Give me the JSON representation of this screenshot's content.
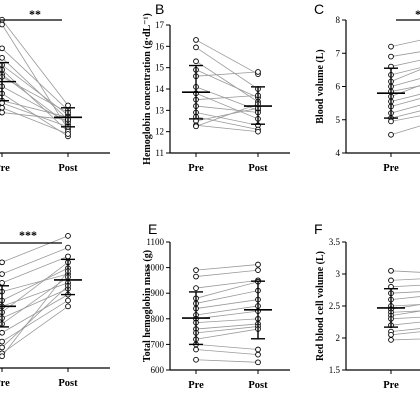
{
  "chart_data": [
    {
      "type": "scatter",
      "panel_label": "",
      "ylabel": "",
      "categories": [
        "Pre",
        "Post"
      ],
      "yticks": [],
      "ylim": [
        0.5,
        3.4
      ],
      "significance": "**",
      "pre_summary": {
        "mean": 2.0,
        "sd_low": 1.6,
        "sd_high": 2.4
      },
      "post_summary": {
        "mean": 1.25,
        "sd_low": 1.05,
        "sd_high": 1.45
      },
      "pairs": [
        [
          3.3,
          1.5
        ],
        [
          3.2,
          1.0
        ],
        [
          2.7,
          1.4
        ],
        [
          2.5,
          1.2
        ],
        [
          2.35,
          1.3
        ],
        [
          2.25,
          0.95
        ],
        [
          2.15,
          1.1
        ],
        [
          2.1,
          1.35
        ],
        [
          1.9,
          1.15
        ],
        [
          1.75,
          0.85
        ],
        [
          1.6,
          1.25
        ],
        [
          1.55,
          1.05
        ],
        [
          1.45,
          0.9
        ],
        [
          1.35,
          1.2
        ]
      ]
    },
    {
      "type": "scatter",
      "panel_label": "B",
      "ylabel": "Hemoglobin concentration (g·dL⁻¹)",
      "categories": [
        "Pre",
        "Post"
      ],
      "yticks": [
        11,
        12,
        13,
        14,
        15,
        16,
        17
      ],
      "ylim": [
        11,
        17
      ],
      "significance": "",
      "pre_summary": {
        "mean": 13.85,
        "sd_low": 12.6,
        "sd_high": 15.1
      },
      "post_summary": {
        "mean": 13.2,
        "sd_low": 12.35,
        "sd_high": 14.1
      },
      "pairs": [
        [
          16.3,
          14.7
        ],
        [
          15.95,
          14.0
        ],
        [
          15.3,
          13.4
        ],
        [
          14.9,
          13.6
        ],
        [
          14.6,
          14.8
        ],
        [
          14.1,
          13.0
        ],
        [
          13.8,
          12.6
        ],
        [
          13.5,
          13.7
        ],
        [
          13.2,
          12.9
        ],
        [
          12.9,
          12.3
        ],
        [
          12.7,
          12.1
        ],
        [
          12.5,
          13.1
        ],
        [
          12.3,
          12.0
        ],
        [
          12.25,
          13.3
        ]
      ]
    },
    {
      "type": "scatter",
      "panel_label": "C",
      "ylabel": "Blood volume (L)",
      "categories": [
        "Pre",
        "Post"
      ],
      "yticks": [
        4,
        5,
        6,
        7,
        8
      ],
      "ylim": [
        4,
        8
      ],
      "significance": "*",
      "pre_summary": {
        "mean": 5.8,
        "sd_low": 5.05,
        "sd_high": 6.55
      },
      "post_summary": {
        "mean": 6.3,
        "sd_low": 5.6,
        "sd_high": 7.0
      },
      "pairs": [
        [
          7.2,
          7.6
        ],
        [
          6.9,
          7.2
        ],
        [
          6.6,
          7.0
        ],
        [
          6.35,
          6.8
        ],
        [
          6.15,
          6.9
        ],
        [
          6.0,
          6.5
        ],
        [
          5.85,
          6.2
        ],
        [
          5.7,
          6.4
        ],
        [
          5.55,
          6.0
        ],
        [
          5.4,
          5.9
        ],
        [
          5.2,
          5.7
        ],
        [
          5.05,
          5.5
        ],
        [
          4.95,
          5.3
        ],
        [
          4.55,
          5.1
        ]
      ]
    },
    {
      "type": "scatter",
      "panel_label": "",
      "ylabel": "",
      "categories": [
        "Pre",
        "Post"
      ],
      "yticks": [],
      "ylim": [
        0.5,
        2.85
      ],
      "significance": "***",
      "pre_summary": {
        "mean": 1.55,
        "sd_low": 1.2,
        "sd_high": 1.9
      },
      "post_summary": {
        "mean": 2.0,
        "sd_low": 1.75,
        "sd_high": 2.35
      },
      "pairs": [
        [
          2.3,
          2.75
        ],
        [
          2.1,
          2.55
        ],
        [
          1.95,
          2.4
        ],
        [
          1.8,
          2.1
        ],
        [
          1.65,
          2.2
        ],
        [
          1.55,
          1.95
        ],
        [
          1.45,
          2.3
        ],
        [
          1.35,
          1.85
        ],
        [
          1.25,
          2.05
        ],
        [
          1.1,
          1.75
        ],
        [
          0.95,
          1.65
        ],
        [
          0.85,
          1.9
        ],
        [
          0.75,
          1.55
        ],
        [
          0.7,
          2.15
        ]
      ]
    },
    {
      "type": "scatter",
      "panel_label": "E",
      "ylabel": "Total hemoglobin mass (g)",
      "categories": [
        "Pre",
        "Post"
      ],
      "yticks": [
        600,
        700,
        800,
        900,
        1000,
        1100
      ],
      "ylim": [
        600,
        1100
      ],
      "significance": "",
      "pre_summary": {
        "mean": 803,
        "sd_low": 700,
        "sd_high": 905
      },
      "post_summary": {
        "mean": 835,
        "sd_low": 722,
        "sd_high": 947
      },
      "pairs": [
        [
          990,
          1012
        ],
        [
          965,
          990
        ],
        [
          920,
          950
        ],
        [
          880,
          945
        ],
        [
          860,
          910
        ],
        [
          840,
          875
        ],
        [
          815,
          850
        ],
        [
          800,
          830
        ],
        [
          785,
          800
        ],
        [
          760,
          780
        ],
        [
          745,
          770
        ],
        [
          720,
          760
        ],
        [
          700,
          680
        ],
        [
          680,
          660
        ],
        [
          640,
          630
        ]
      ]
    },
    {
      "type": "scatter",
      "panel_label": "F",
      "ylabel": "Red blood cell volume (L)",
      "categories": [
        "Pre",
        "Post"
      ],
      "yticks": [
        1.5,
        2.0,
        2.5,
        3.0,
        3.5
      ],
      "ylim": [
        1.5,
        3.5
      ],
      "significance": "",
      "pre_summary": {
        "mean": 2.47,
        "sd_low": 2.17,
        "sd_high": 2.77
      },
      "post_summary": {
        "mean": 2.55,
        "sd_low": 2.25,
        "sd_high": 2.85
      },
      "pairs": [
        [
          3.05,
          3.0
        ],
        [
          2.9,
          2.95
        ],
        [
          2.8,
          2.85
        ],
        [
          2.7,
          2.75
        ],
        [
          2.6,
          2.7
        ],
        [
          2.5,
          2.55
        ],
        [
          2.45,
          2.6
        ],
        [
          2.4,
          2.45
        ],
        [
          2.35,
          2.5
        ],
        [
          2.3,
          2.35
        ],
        [
          2.2,
          2.3
        ],
        [
          2.1,
          2.2
        ],
        [
          2.05,
          2.15
        ],
        [
          1.97,
          2.0
        ]
      ]
    }
  ]
}
